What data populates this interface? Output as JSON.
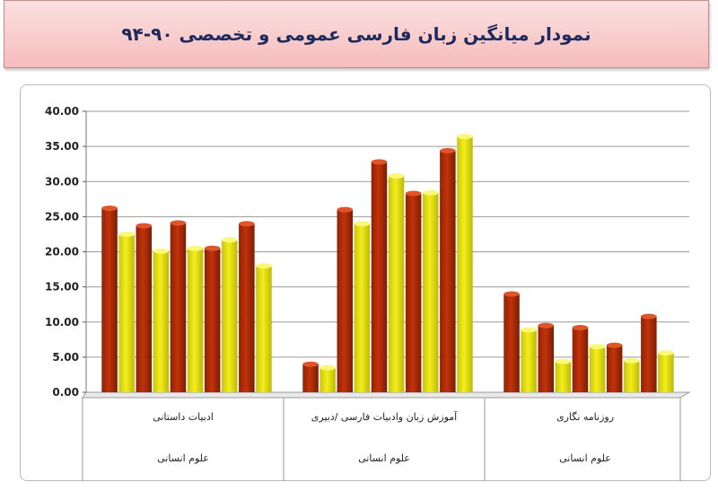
{
  "title": "نمودار میانگین زبان فارسی عمومی و تخصصی ۹۰-۹۴",
  "colors": {
    "dark_series": "#c1330a",
    "light_series": "#f2ee1a",
    "grid": "#9a9a9a",
    "title_bg": "#f6bcbc",
    "title_text": "#1f2a5c"
  },
  "chart_data": {
    "type": "bar",
    "title": "نمودار میانگین زبان فارسی عمومی و تخصصی ۹۰-۹۴",
    "ylim": [
      0,
      40
    ],
    "yticks": [
      "0.00",
      "5.00",
      "10.00",
      "15.00",
      "20.00",
      "25.00",
      "30.00",
      "35.00",
      "40.00"
    ],
    "grid": true,
    "legend": "none",
    "categories": [
      {
        "label": "ادبیات داستانی",
        "group": "علوم انسانی",
        "values": [
          26.2,
          22.5,
          23.7,
          20.1,
          24.1,
          20.5,
          20.5,
          21.7,
          24.0,
          18.0
        ]
      },
      {
        "label": "آموزش زبان وادبیات فارسی /دبیری",
        "group": "علوم انسانی",
        "values": [
          4.0,
          3.5,
          26.0,
          24.0,
          32.8,
          30.8,
          28.3,
          28.4,
          34.4,
          36.4
        ]
      },
      {
        "label": "روزنامه نگاری",
        "group": "علوم انسانی",
        "values": [
          14.0,
          8.9,
          9.5,
          4.4,
          9.2,
          6.5,
          6.7,
          4.5,
          10.8,
          5.6
        ]
      }
    ]
  }
}
